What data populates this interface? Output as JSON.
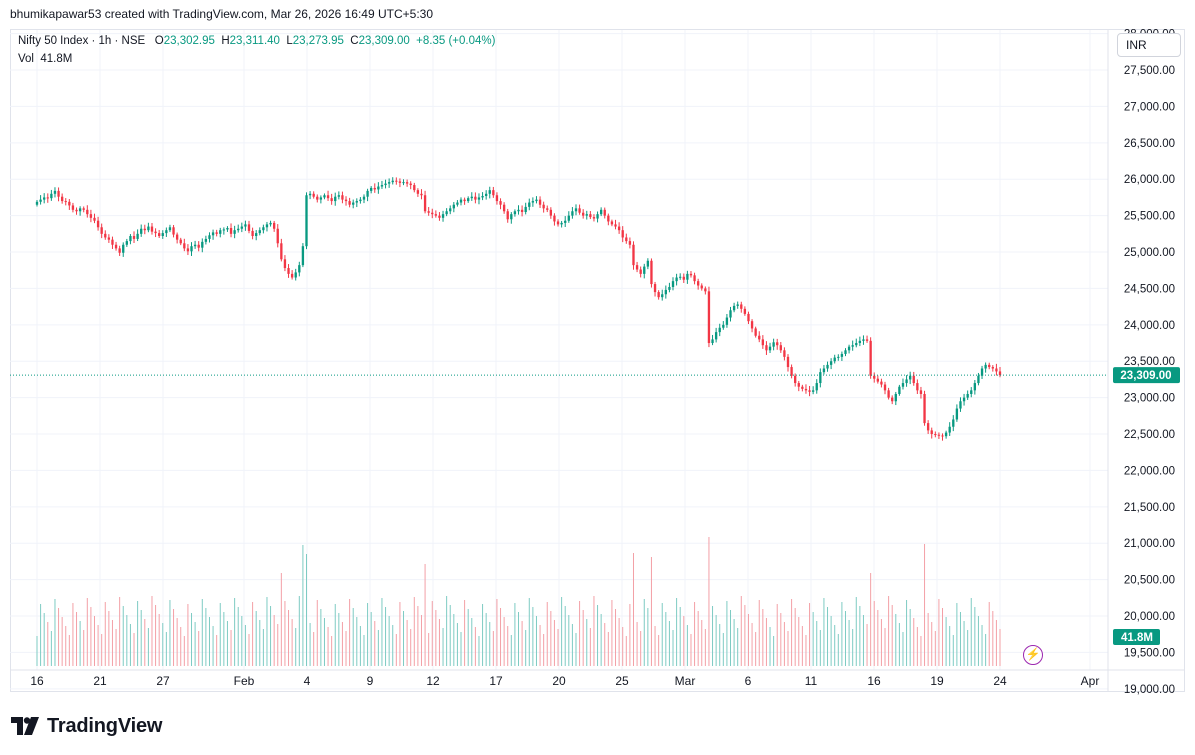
{
  "header": {
    "credit": "bhumikapawar53 created with TradingView.com, Mar 26, 2026 16:49 UTC+5:30"
  },
  "legend": {
    "symbol": "Nifty 50 Index · 1h · NSE",
    "open_key": "O",
    "open": "23,302.95",
    "high_key": "H",
    "high": "23,311.40",
    "low_key": "L",
    "low": "23,273.95",
    "close_key": "C",
    "close": "23,309.00",
    "change": "+8.35 (+0.04%)",
    "vol_key": "Vol",
    "vol": "41.8M"
  },
  "currency": "INR",
  "last_price_label": "23,309.00",
  "volume_label": "41.8M",
  "footer": {
    "brand": "TradingView"
  },
  "colors": {
    "up": "#089981",
    "down": "#f23645",
    "vol_up": "#7ecbc3",
    "vol_down": "#f3a0a6",
    "grid": "#f0f3fa",
    "alert": "#9c27b0"
  },
  "icons": {
    "alert": "lightning-icon",
    "logo": "tradingview-logo-icon"
  },
  "chart_data": {
    "type": "candlestick",
    "interval": "1h",
    "y_ticks": [
      19000,
      19500,
      20000,
      20500,
      21000,
      21500,
      22000,
      22500,
      23000,
      23500,
      24000,
      24500,
      25000,
      25500,
      26000,
      26500,
      27000,
      27500,
      28000
    ],
    "y_tick_labels": [
      "19,000.00",
      "19,500.00",
      "20,000.00",
      "20,500.00",
      "21,000.00",
      "21,500.00",
      "22,000.00",
      "22,500.00",
      "23,000.00",
      "23,500.00",
      "24,000.00",
      "24,500.00",
      "25,000.00",
      "25,500.00",
      "26,000.00",
      "26,500.00",
      "27,000.00",
      "27,500.00",
      "28,000.00"
    ],
    "ylim": [
      18970,
      28050
    ],
    "x_ticks": [
      {
        "label": "16",
        "i": 3
      },
      {
        "label": "21",
        "i": 10
      },
      {
        "label": "27",
        "i": 17
      },
      {
        "label": "Feb",
        "i": 26
      },
      {
        "label": "4",
        "i": 33
      },
      {
        "label": "9",
        "i": 40
      },
      {
        "label": "12",
        "i": 47
      },
      {
        "label": "17",
        "i": 54
      },
      {
        "label": "20",
        "i": 61
      },
      {
        "label": "25",
        "i": 68
      },
      {
        "label": "Mar",
        "i": 75
      },
      {
        "label": "6",
        "i": 82
      },
      {
        "label": "11",
        "i": 89
      },
      {
        "label": "16",
        "i": 96
      },
      {
        "label": "19",
        "i": 103
      },
      {
        "label": "24",
        "i": 110
      },
      {
        "label": "Apr",
        "i": 120
      }
    ],
    "x_range": [
      0,
      122
    ],
    "bars_per_day": 7,
    "closes": [
      25690,
      25720,
      25750,
      25740,
      25800,
      25840,
      25760,
      25700,
      25690,
      25640,
      25580,
      25560,
      25600,
      25580,
      25520,
      25470,
      25430,
      25340,
      25250,
      25200,
      25170,
      25100,
      25050,
      24990,
      25100,
      25150,
      25220,
      25180,
      25250,
      25320,
      25300,
      25350,
      25280,
      25260,
      25220,
      25260,
      25300,
      25340,
      25240,
      25170,
      25120,
      25050,
      25010,
      25080,
      25100,
      25060,
      25140,
      25180,
      25230,
      25270,
      25250,
      25300,
      25310,
      25330,
      25250,
      25300,
      25320,
      25350,
      25380,
      25290,
      25220,
      25260,
      25300,
      25340,
      25380,
      25400,
      25320,
      25120,
      24900,
      24780,
      24700,
      24650,
      24720,
      24820,
      25080,
      25780,
      25800,
      25760,
      25720,
      25750,
      25780,
      25740,
      25700,
      25760,
      25780,
      25720,
      25700,
      25650,
      25680,
      25700,
      25720,
      25760,
      25840,
      25880,
      25860,
      25900,
      25920,
      25940,
      25960,
      25980,
      25970,
      25950,
      25960,
      25940,
      25920,
      25850,
      25800,
      25780,
      25560,
      25540,
      25520,
      25500,
      25470,
      25520,
      25560,
      25600,
      25650,
      25680,
      25720,
      25700,
      25740,
      25760,
      25720,
      25750,
      25770,
      25800,
      25850,
      25780,
      25700,
      25650,
      25560,
      25450,
      25520,
      25560,
      25580,
      25550,
      25620,
      25680,
      25700,
      25720,
      25650,
      25600,
      25580,
      25500,
      25420,
      25380,
      25400,
      25430,
      25500,
      25560,
      25600,
      25540,
      25500,
      25520,
      25480,
      25460,
      25520,
      25580,
      25500,
      25420,
      25380,
      25350,
      25300,
      25200,
      25150,
      25100,
      24820,
      24760,
      24700,
      24800,
      24880,
      24560,
      24450,
      24380,
      24420,
      24480,
      24520,
      24600,
      24650,
      24660,
      24620,
      24700,
      24680,
      24600,
      24540,
      24500,
      24460,
      23750,
      23800,
      23900,
      23960,
      24000,
      24100,
      24200,
      24260,
      24280,
      24220,
      24150,
      24050,
      23950,
      23850,
      23800,
      23720,
      23650,
      23700,
      23760,
      23720,
      23650,
      23560,
      23420,
      23300,
      23200,
      23150,
      23120,
      23100,
      23080,
      23100,
      23200,
      23350,
      23400,
      23450,
      23500,
      23550,
      23560,
      23600,
      23650,
      23700,
      23720,
      23750,
      23780,
      23800,
      23780,
      23300,
      23260,
      23220,
      23180,
      23100,
      23000,
      22950,
      23050,
      23150,
      23200,
      23250,
      23300,
      23200,
      23100,
      23050,
      22650,
      22550,
      22500,
      22490,
      22480,
      22470,
      22520,
      22600,
      22700,
      22850,
      22950,
      23000,
      23050,
      23100,
      23200,
      23300,
      23400,
      23450,
      23420,
      23400,
      23360,
      23309
    ]
  }
}
